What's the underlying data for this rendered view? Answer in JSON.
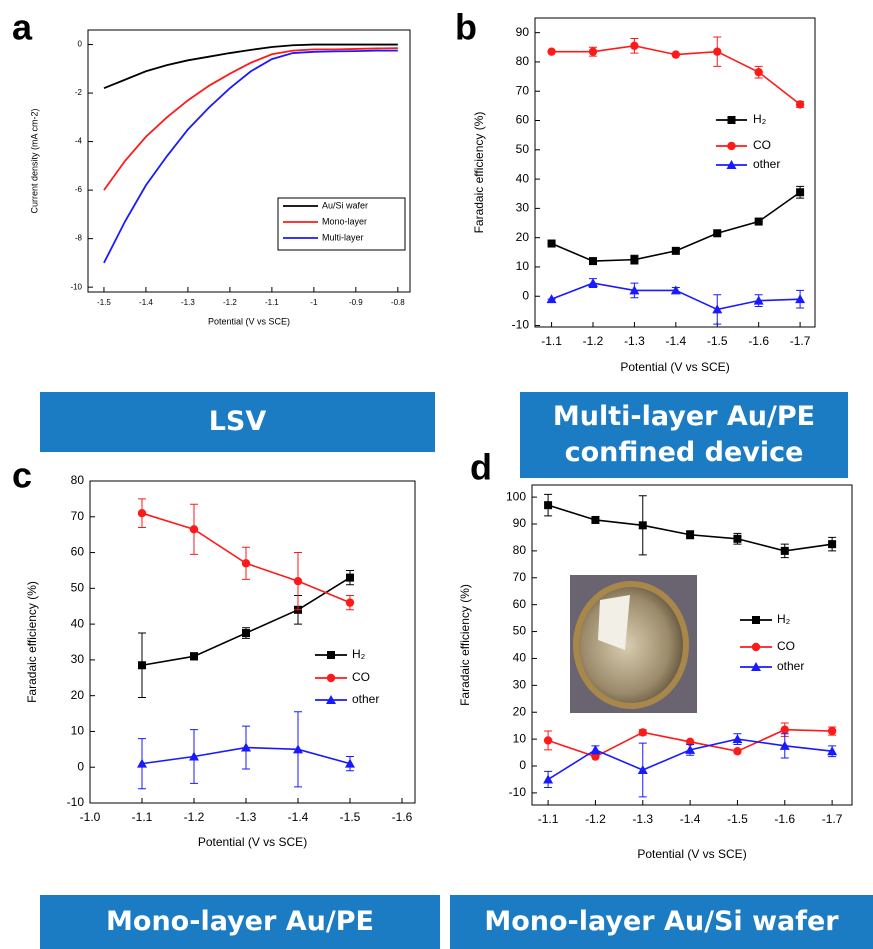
{
  "chart_data": [
    {
      "type": "line",
      "panel_label": "a",
      "caption": "LSV",
      "x_label": "Potential (V vs SCE)",
      "y_label": "Current density (mA cm-2)",
      "x": [
        -1.5,
        -1.45,
        -1.4,
        -1.35,
        -1.3,
        -1.25,
        -1.2,
        -1.15,
        -1.1,
        -1.05,
        -1.0,
        -0.95,
        -0.9,
        -0.85,
        -0.8
      ],
      "xlim": [
        -1.538,
        -0.771
      ],
      "xticks": [
        -1.5,
        -1.4,
        -1.3,
        -1.2,
        -1.1,
        -1.0,
        -0.9,
        -0.8
      ],
      "ylim": [
        -10.2,
        0.6
      ],
      "yticks": [
        -10,
        -8,
        -6,
        -4,
        -2,
        0
      ],
      "legend": "lower right",
      "series": [
        {
          "name": "Au/Si wafer",
          "color": "#000000",
          "values": [
            -1.8,
            -1.45,
            -1.1,
            -0.85,
            -0.65,
            -0.5,
            -0.35,
            -0.22,
            -0.1,
            -0.03,
            0,
            0,
            0,
            0,
            0
          ]
        },
        {
          "name": "Mono-layer",
          "color": "#ff1a1a",
          "values": [
            -6,
            -4.8,
            -3.8,
            -3.0,
            -2.3,
            -1.7,
            -1.2,
            -0.75,
            -0.4,
            -0.25,
            -0.2,
            -0.2,
            -0.18,
            -0.16,
            -0.15
          ]
        },
        {
          "name": "Multi-layer",
          "color": "#1a1aff",
          "values": [
            -9,
            -7.3,
            -5.8,
            -4.6,
            -3.5,
            -2.6,
            -1.8,
            -1.1,
            -0.6,
            -0.35,
            -0.3,
            -0.28,
            -0.27,
            -0.25,
            -0.25
          ]
        }
      ]
    },
    {
      "type": "line",
      "panel_label": "b",
      "caption": "Multi-layer Au/PE confined device",
      "x_label": "Potential (V vs SCE)",
      "y_label": "Faradaic efficiency (%)",
      "x": [
        -1.1,
        -1.2,
        -1.3,
        -1.4,
        -1.5,
        -1.6,
        -1.7
      ],
      "xlim": [
        -1.06,
        -1.736
      ],
      "xticks": [
        -1.1,
        -1.2,
        -1.3,
        -1.4,
        -1.5,
        -1.6,
        -1.7
      ],
      "ylim": [
        -10.5,
        95
      ],
      "yticks": [
        -10,
        0,
        10,
        20,
        30,
        40,
        50,
        60,
        70,
        80,
        90
      ],
      "legend": "center right",
      "series": [
        {
          "name": "H₂",
          "color": "#000000",
          "marker": "square",
          "values": [
            18,
            12,
            12.5,
            15.5,
            21.5,
            25.5,
            35.5
          ],
          "errors": [
            0,
            0,
            1.5,
            0,
            0,
            0,
            2
          ]
        },
        {
          "name": "CO",
          "color": "#ff1a1a",
          "marker": "circle",
          "values": [
            83.5,
            83.5,
            85.5,
            82.5,
            83.5,
            76.5,
            65.5
          ],
          "errors": [
            0,
            1.5,
            2.5,
            0,
            5,
            2,
            1
          ]
        },
        {
          "name": "other",
          "color": "#1a1aff",
          "marker": "triangle",
          "values": [
            -1,
            4.5,
            2,
            2,
            -4.5,
            -1.5,
            -1
          ],
          "errors": [
            0,
            1.5,
            2.5,
            1,
            5,
            2,
            3
          ]
        }
      ]
    },
    {
      "type": "line",
      "panel_label": "c",
      "caption": "Mono-layer Au/PE",
      "x_label": "Potential (V vs SCE)",
      "y_label": "Faradaic efficiency (%)",
      "x": [
        -1.1,
        -1.2,
        -1.3,
        -1.4,
        -1.5
      ],
      "xlim": [
        -1.0,
        -1.625
      ],
      "xticks": [
        {
          "value": -1.0,
          "label": "-1.0"
        },
        -1.1,
        -1.2,
        -1.3,
        -1.4,
        -1.5,
        -1.6
      ],
      "ylim": [
        -10,
        80
      ],
      "yticks": [
        -10,
        0,
        10,
        20,
        30,
        40,
        50,
        60,
        70,
        80
      ],
      "legend": "center right",
      "series": [
        {
          "name": "H₂",
          "color": "#000000",
          "marker": "square",
          "values": [
            28.5,
            31,
            37.5,
            44,
            53
          ],
          "errors": [
            9,
            1,
            1.5,
            4,
            2
          ]
        },
        {
          "name": "CO",
          "color": "#ff1a1a",
          "marker": "circle",
          "values": [
            71,
            66.5,
            57,
            52,
            46
          ],
          "errors": [
            4,
            7,
            4.5,
            8,
            2
          ]
        },
        {
          "name": "other",
          "color": "#1a1aff",
          "marker": "triangle",
          "values": [
            1,
            3,
            5.5,
            5,
            1
          ],
          "errors": [
            7,
            7.5,
            6,
            10.5,
            2
          ]
        }
      ]
    },
    {
      "type": "line",
      "panel_label": "d",
      "caption": "Mono-layer Au/Si wafer",
      "x_label": "Potential (V vs SCE)",
      "y_label": "Faradaic efficiency (%)",
      "x": [
        -1.1,
        -1.2,
        -1.3,
        -1.4,
        -1.5,
        -1.6,
        -1.7
      ],
      "xlim": [
        -1.066,
        -1.742
      ],
      "xticks": [
        -1.1,
        -1.2,
        -1.3,
        -1.4,
        -1.5,
        -1.6,
        -1.7
      ],
      "ylim": [
        -14.5,
        104.5
      ],
      "yticks": [
        -10,
        0,
        10,
        20,
        30,
        40,
        50,
        60,
        70,
        80,
        90,
        100
      ],
      "legend": "center right",
      "series": [
        {
          "name": "H₂",
          "color": "#000000",
          "marker": "square",
          "values": [
            97,
            91.5,
            89.5,
            86,
            84.5,
            80,
            82.5
          ],
          "errors": [
            4,
            0,
            11,
            1.5,
            2,
            2.5,
            2.5
          ]
        },
        {
          "name": "CO",
          "color": "#ff1a1a",
          "marker": "circle",
          "values": [
            9.5,
            3.5,
            12.5,
            9,
            5.5,
            13.5,
            13
          ],
          "errors": [
            3.5,
            0,
            1,
            0,
            0,
            2.5,
            1.5
          ]
        },
        {
          "name": "other",
          "color": "#1a1aff",
          "marker": "triangle",
          "values": [
            -5,
            6,
            -1.5,
            6,
            10,
            7.5,
            5.5
          ],
          "errors": [
            3,
            1.5,
            10,
            2,
            2,
            4.5,
            2
          ]
        }
      ]
    }
  ]
}
